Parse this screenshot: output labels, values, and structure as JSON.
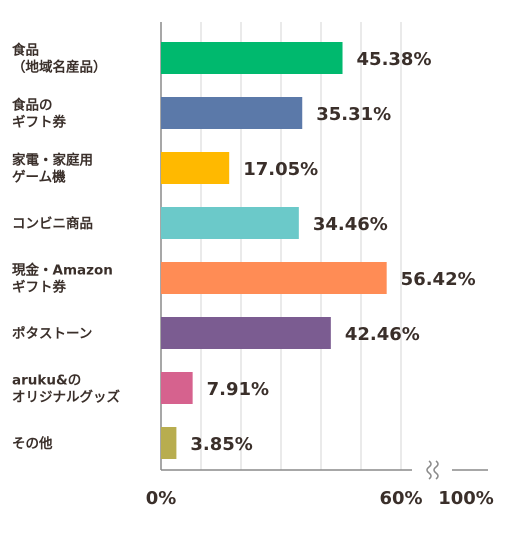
{
  "chart_data": {
    "type": "bar",
    "orientation": "horizontal",
    "categories": [
      [
        "食品",
        "（地域名産品）"
      ],
      [
        "食品の",
        "ギフト券"
      ],
      [
        "家電・家庭用",
        "ゲーム機"
      ],
      [
        "コンビニ商品"
      ],
      [
        "現金・Amazon",
        "ギフト券"
      ],
      [
        "ポタストーン"
      ],
      [
        "aruku&の",
        "オリジナルグッズ"
      ],
      [
        "その他"
      ]
    ],
    "values": [
      45.38,
      35.31,
      17.05,
      34.46,
      56.42,
      42.46,
      7.91,
      3.85
    ],
    "value_labels": [
      "45.38%",
      "35.31%",
      "17.05%",
      "34.46%",
      "56.42%",
      "42.46%",
      "7.91%",
      "3.85%"
    ],
    "colors": [
      "#00b96e",
      "#5b79a9",
      "#ffb900",
      "#6bc9c9",
      "#ff8c55",
      "#7b5c91",
      "#d6628e",
      "#b8ad4f"
    ],
    "x_axis": {
      "range": [
        0,
        100
      ],
      "broken_axis": {
        "from": 60,
        "to": 100
      },
      "tick_labels": [
        "0%",
        "60%",
        "100%"
      ]
    },
    "grid": true,
    "legend": "none"
  }
}
